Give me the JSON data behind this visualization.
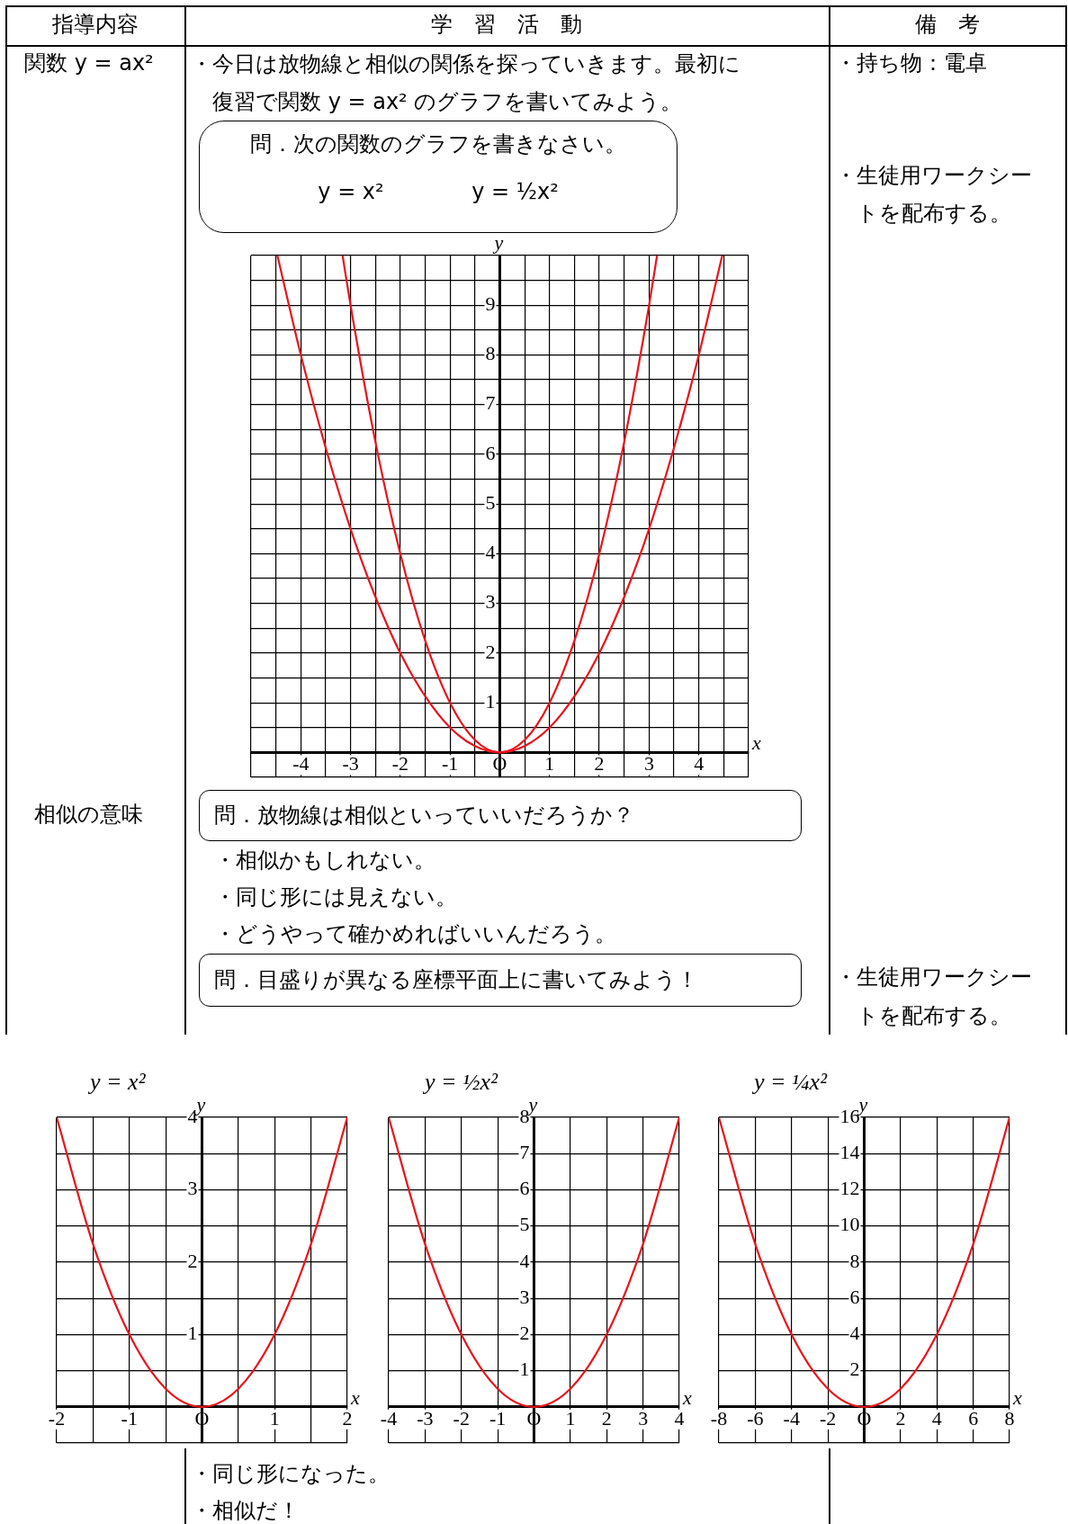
{
  "chart_data": [
    {
      "type": "line",
      "xlabel": "x",
      "ylabel": "y",
      "grid": true,
      "xlim": [
        -5,
        5
      ],
      "ylim": [
        -0.5,
        10
      ],
      "xticks": [
        {
          "value": -5,
          "label": null
        },
        {
          "value": -4.5,
          "label": null
        },
        -4,
        {
          "value": -3.5,
          "label": null
        },
        -3,
        {
          "value": -2.5,
          "label": null
        },
        -2,
        {
          "value": -1.5,
          "label": null
        },
        -1,
        {
          "value": -0.5,
          "label": null
        },
        {
          "value": 0,
          "label": "O"
        },
        {
          "value": 0.5,
          "label": null
        },
        1,
        {
          "value": 1.5,
          "label": null
        },
        2,
        {
          "value": 2.5,
          "label": null
        },
        3,
        {
          "value": 3.5,
          "label": null
        },
        4,
        {
          "value": 4.5,
          "label": null
        },
        {
          "value": 5,
          "label": null
        }
      ],
      "yticks": [
        {
          "value": -0.5,
          "label": null
        },
        {
          "value": 0,
          "label": null
        },
        {
          "value": 0.5,
          "label": null
        },
        1,
        {
          "value": 1.5,
          "label": null
        },
        2,
        {
          "value": 2.5,
          "label": null
        },
        3,
        {
          "value": 3.5,
          "label": null
        },
        4,
        {
          "value": 4.5,
          "label": null
        },
        5,
        {
          "value": 5.5,
          "label": null
        },
        6,
        {
          "value": 6.5,
          "label": null
        },
        7,
        {
          "value": 7.5,
          "label": null
        },
        8,
        {
          "value": 8.5,
          "label": null
        },
        9,
        {
          "value": 9.5,
          "label": null
        },
        {
          "value": 10,
          "label": null
        }
      ],
      "series": [
        {
          "color": "#e8141c",
          "x": [
            -3.16,
            -3,
            -2.5,
            -2,
            -1.5,
            -1,
            -0.5,
            0,
            0.5,
            1,
            1.5,
            2,
            2.5,
            3,
            3.16
          ],
          "values": [
            10,
            9,
            6.25,
            4,
            2.25,
            1,
            0.25,
            0,
            0.25,
            1,
            2.25,
            4,
            6.25,
            9,
            10
          ]
        },
        {
          "color": "#e8141c",
          "x": [
            -4.47,
            -4,
            -3.5,
            -3,
            -2.5,
            -2,
            -1.5,
            -1,
            -0.5,
            0,
            0.5,
            1,
            1.5,
            2,
            2.5,
            3,
            3.5,
            4,
            4.47
          ],
          "values": [
            10,
            8,
            6.13,
            4.5,
            3.13,
            2,
            1.13,
            0.5,
            0.13,
            0,
            0.13,
            0.5,
            1.13,
            2,
            3.13,
            4.5,
            6.13,
            8,
            10
          ]
        }
      ],
      "annotations": [
        "指導内容",
        "学　習　活　動",
        "備　考",
        "関数 y = ax²",
        "・今日は放物線と相似の関係を探っていきます。最初に復習で関数 y = ax² のグラフを書いてみよう。",
        "・持ち物：電卓",
        "問．次の関数のグラフを書きなさい。",
        "y = x²",
        "y = ½x²",
        "・生徒用ワークシートを配布する。",
        "相似の意味",
        "問．放物線は相似といっていいだろうか？",
        "・相似かもしれない。",
        "・同じ形には見えない。",
        "・どうやって確かめればいいんだろう。",
        "問．目盛りが異なる座標平面上に書いてみよう！",
        "・生徒用ワークシートを配布する。",
        "・同じ形になった。",
        "・相似だ！"
      ]
    },
    {
      "type": "line",
      "title": "y = x²",
      "xlabel": "x",
      "ylabel": "y",
      "grid": true,
      "xlim": [
        -2,
        2
      ],
      "ylim": [
        -0.5,
        4
      ],
      "xticks": [
        -2,
        {
          "value": -1.5,
          "label": null
        },
        -1,
        {
          "value": -0.5,
          "label": null
        },
        {
          "value": 0,
          "label": "O"
        },
        {
          "value": 0.5,
          "label": null
        },
        1,
        {
          "value": 1.5,
          "label": null
        },
        2
      ],
      "yticks": [
        {
          "value": -0.5,
          "label": null
        },
        {
          "value": 0,
          "label": null
        },
        {
          "value": 0.5,
          "label": null
        },
        1,
        {
          "value": 1.5,
          "label": null
        },
        2,
        {
          "value": 2.5,
          "label": null
        },
        3,
        {
          "value": 3.5,
          "label": null
        },
        4
      ],
      "series": [
        {
          "color": "#e8141c",
          "x": [
            -2,
            -1.5,
            -1,
            -0.5,
            0,
            0.5,
            1,
            1.5,
            2
          ],
          "values": [
            4,
            2.25,
            1,
            0.25,
            0,
            0.25,
            1,
            2.25,
            4
          ]
        }
      ]
    },
    {
      "type": "line",
      "title": "y = ½x²",
      "xlabel": "x",
      "ylabel": "y",
      "grid": true,
      "xlim": [
        -4,
        4
      ],
      "ylim": [
        -1,
        8
      ],
      "xticks": [
        -4,
        -3,
        -2,
        -1,
        {
          "value": 0,
          "label": "O"
        },
        1,
        2,
        3,
        4
      ],
      "yticks": [
        {
          "value": -1,
          "label": null
        },
        {
          "value": 0,
          "label": null
        },
        1,
        2,
        3,
        4,
        5,
        6,
        7,
        8
      ],
      "series": [
        {
          "color": "#e8141c",
          "x": [
            -4,
            -3,
            -2,
            -1,
            0,
            1,
            2,
            3,
            4
          ],
          "values": [
            8,
            4.5,
            2,
            0.5,
            0,
            0.5,
            2,
            4.5,
            8
          ]
        }
      ]
    },
    {
      "type": "line",
      "title": "y = ¼x²",
      "xlabel": "x",
      "ylabel": "y",
      "grid": true,
      "xlim": [
        -8,
        8
      ],
      "ylim": [
        -2,
        16
      ],
      "xticks": [
        -8,
        -6,
        -4,
        -2,
        {
          "value": 0,
          "label": "O"
        },
        2,
        4,
        6,
        8
      ],
      "yticks": [
        {
          "value": -2,
          "label": null
        },
        {
          "value": 0,
          "label": null
        },
        2,
        4,
        6,
        8,
        10,
        12,
        14,
        16
      ],
      "series": [
        {
          "color": "#e8141c",
          "x": [
            -8,
            -6,
            -4,
            -2,
            0,
            2,
            4,
            6,
            8
          ],
          "values": [
            16,
            9,
            4,
            1,
            0,
            1,
            4,
            9,
            16
          ]
        }
      ]
    }
  ]
}
